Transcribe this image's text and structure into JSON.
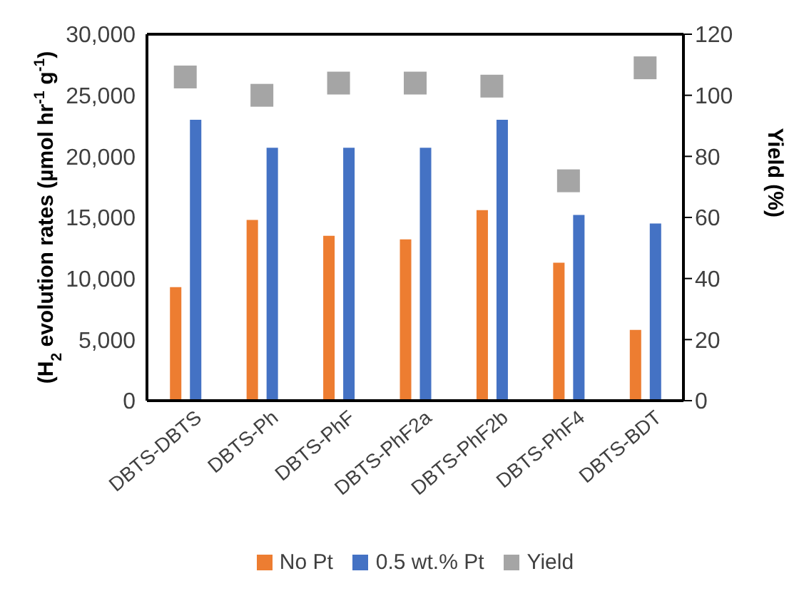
{
  "chart_data": {
    "type": "bar",
    "categories": [
      "DBTS-DBTS",
      "DBTS-Ph",
      "DBTS-PhF",
      "DBTS-PhF2a",
      "DBTS-PhF2b",
      "DBTS-PhF4",
      "DBTS-BDT"
    ],
    "series": [
      {
        "name": "No Pt",
        "color": "#ed7d31",
        "values": [
          9300,
          14800,
          13500,
          13200,
          15600,
          11300,
          5800
        ]
      },
      {
        "name": "0.5 wt.% Pt",
        "color": "#4472c4",
        "values": [
          23000,
          20700,
          20700,
          20700,
          23000,
          15200,
          14500
        ]
      },
      {
        "name": "Yield",
        "type": "scatter",
        "axis": "y2",
        "marker": "square",
        "color": "#a5a5a5",
        "values": [
          106,
          100,
          104,
          104,
          103,
          72,
          109
        ]
      }
    ],
    "ylabel": "(H$_{2}$ evolution rates (µmol hr$^{-1}$ g$^{-1}$)",
    "y2label": "Yield (%)",
    "ylim": [
      0,
      30000
    ],
    "yticks": [
      {
        "value": 0,
        "label": "0"
      },
      {
        "value": 5000,
        "label": "5,000"
      },
      {
        "value": 10000,
        "label": "10,000"
      },
      {
        "value": 15000,
        "label": "15,000"
      },
      {
        "value": 20000,
        "label": "20,000"
      },
      {
        "value": 25000,
        "label": "25,000"
      },
      {
        "value": 30000,
        "label": "30,000"
      }
    ],
    "y2lim": [
      0,
      120
    ],
    "y2ticks": [
      0,
      20,
      40,
      60,
      80,
      100,
      120
    ],
    "grid": false,
    "legend": "bottom"
  }
}
